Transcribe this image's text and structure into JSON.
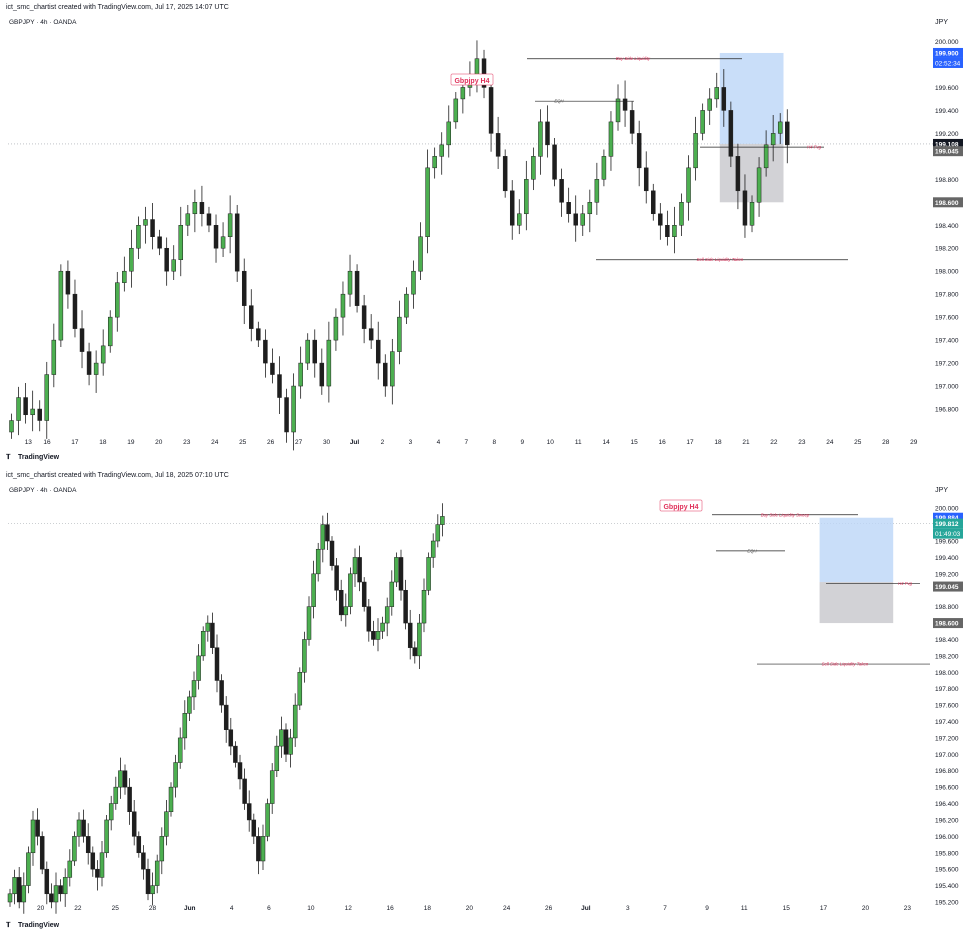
{
  "charts": [
    {
      "credit": "ict_smc_chartist created with TradingView.com, Jul 17, 2025 14:07 UTC",
      "symbol_line": "GBPJPY · 4h · OANDA",
      "currency": "JPY",
      "watermark": "TradingView",
      "title_tag": "Gbpjpy H4",
      "price_ticks": [
        "200.000",
        "199.800",
        "199.600",
        "199.400",
        "199.200",
        "198.800",
        "198.600",
        "198.400",
        "198.200",
        "198.000",
        "197.800",
        "197.600",
        "197.400",
        "197.200",
        "197.000",
        "196.800"
      ],
      "price_labels": [
        {
          "price": 199.9,
          "text": "199.900",
          "style": "blue"
        },
        {
          "price": 199.108,
          "text": "199.108",
          "style": "dark"
        },
        {
          "price": 199.045,
          "text": "199.045",
          "style": "grey"
        },
        {
          "price": 198.6,
          "text": "198.600",
          "style": "grey"
        }
      ],
      "countdown": "02:52:34",
      "date_ticks": [
        {
          "i": 2,
          "t": "13"
        },
        {
          "i": 6,
          "t": "16"
        },
        {
          "i": 12,
          "t": "17"
        },
        {
          "i": 18,
          "t": "18"
        },
        {
          "i": 24,
          "t": "19"
        },
        {
          "i": 30,
          "t": "20"
        },
        {
          "i": 36,
          "t": "23"
        },
        {
          "i": 42,
          "t": "24"
        },
        {
          "i": 48,
          "t": "25"
        },
        {
          "i": 54,
          "t": "26"
        },
        {
          "i": 60,
          "t": "27"
        },
        {
          "i": 66,
          "t": "30"
        },
        {
          "i": 72,
          "t": "Jul"
        },
        {
          "i": 78,
          "t": "2"
        },
        {
          "i": 84,
          "t": "3"
        },
        {
          "i": 90,
          "t": "4"
        },
        {
          "i": 96,
          "t": "7"
        },
        {
          "i": 102,
          "t": "8"
        },
        {
          "i": 108,
          "t": "9"
        },
        {
          "i": 114,
          "t": "10"
        },
        {
          "i": 120,
          "t": "11"
        },
        {
          "i": 126,
          "t": "14"
        },
        {
          "i": 132,
          "t": "15"
        },
        {
          "i": 138,
          "t": "16"
        },
        {
          "i": 144,
          "t": "17"
        },
        {
          "i": 150,
          "t": "18"
        },
        {
          "i": 156,
          "t": "21"
        },
        {
          "i": 162,
          "t": "22"
        },
        {
          "i": 168,
          "t": "23"
        },
        {
          "i": 174,
          "t": "24"
        },
        {
          "i": 180,
          "t": "25"
        },
        {
          "i": 186,
          "t": "28"
        },
        {
          "i": 192,
          "t": "29"
        }
      ],
      "annotations": {
        "bsl": "Buy Side Liquidity",
        "ssl": "Sell Side Liquidity Taken",
        "fvg": "H4 Fvg",
        "eqh": "EQH"
      }
    },
    {
      "credit": "ict_smc_chartist created with TradingView.com, Jul 18, 2025 07:10 UTC",
      "symbol_line": "GBPJPY · 4h · OANDA",
      "currency": "JPY",
      "watermark": "TradingView",
      "title_tag": "Gbpjpy H4",
      "price_ticks": [
        "200.000",
        "199.600",
        "199.400",
        "199.200",
        "198.800",
        "198.400",
        "198.200",
        "198.000",
        "197.800",
        "197.600",
        "197.400",
        "197.200",
        "197.000",
        "196.800",
        "196.600",
        "196.400",
        "196.200",
        "196.000",
        "195.800",
        "195.600",
        "195.400",
        "195.200"
      ],
      "price_labels": [
        {
          "price": 199.884,
          "text": "199.884",
          "style": "blue"
        },
        {
          "price": 199.812,
          "text": "199.812",
          "style": "green"
        },
        {
          "price": 199.045,
          "text": "199.045",
          "style": "grey"
        },
        {
          "price": 198.6,
          "text": "198.600",
          "style": "grey"
        }
      ],
      "countdown": "01:49:03",
      "date_ticks": [
        {
          "i": 4,
          "t": "20"
        },
        {
          "i": 12,
          "t": "22"
        },
        {
          "i": 20,
          "t": "25"
        },
        {
          "i": 28,
          "t": "28"
        },
        {
          "i": 36,
          "t": "Jun"
        },
        {
          "i": 45,
          "t": "4"
        },
        {
          "i": 53,
          "t": "6"
        },
        {
          "i": 62,
          "t": "10"
        },
        {
          "i": 70,
          "t": "12"
        },
        {
          "i": 79,
          "t": "16"
        },
        {
          "i": 87,
          "t": "18"
        },
        {
          "i": 96,
          "t": "20"
        },
        {
          "i": 104,
          "t": "24"
        },
        {
          "i": 113,
          "t": "26"
        },
        {
          "i": 121,
          "t": "Jul"
        },
        {
          "i": 130,
          "t": "3"
        },
        {
          "i": 138,
          "t": "7"
        },
        {
          "i": 147,
          "t": "9"
        },
        {
          "i": 155,
          "t": "11"
        },
        {
          "i": 164,
          "t": "15"
        },
        {
          "i": 172,
          "t": "17"
        },
        {
          "i": 181,
          "t": "20"
        },
        {
          "i": 190,
          "t": "23"
        }
      ],
      "annotations": {
        "bsl": "Buy Side Liquidity Sweep",
        "ssl": "Sell Side Liquidity Taken",
        "fvg": "H4 Fvg",
        "eqh": "EQH"
      }
    }
  ],
  "colors": {
    "up": "#4caf50",
    "down": "#1e1e1e",
    "accent": "#e0315b",
    "zone_blue": "#bbd6f7",
    "zone_grey": "#c7c7cc",
    "label_blue": "#2962ff",
    "label_green": "#26a69a"
  },
  "chart_data": [
    {
      "type": "line",
      "title": "Gbpjpy H4",
      "xlabel": "",
      "ylabel": "JPY",
      "ylim": [
        196.6,
        200.1
      ],
      "series": [
        {
          "values": [
            196.7,
            196.9,
            196.75,
            196.8,
            196.7,
            197.1,
            197.4,
            198.0,
            197.8,
            197.5,
            197.3,
            197.1,
            197.2,
            197.35,
            197.6,
            197.9,
            198.0,
            198.2,
            198.4,
            198.45,
            198.3,
            198.2,
            198.0,
            198.1,
            198.4,
            198.5,
            198.6,
            198.5,
            198.4,
            198.2,
            198.3,
            198.5,
            198.0,
            197.7,
            197.5,
            197.4,
            197.2,
            197.1,
            196.9,
            196.6,
            197.0,
            197.2,
            197.4,
            197.2,
            197.0,
            197.4,
            197.6,
            197.8,
            198.0,
            197.7,
            197.5,
            197.4,
            197.2,
            197.0,
            197.3,
            197.6,
            197.8,
            198.0,
            198.3,
            198.9,
            199.0,
            199.1,
            199.3,
            199.5,
            199.6,
            199.7,
            199.85,
            199.6,
            199.2,
            199.0,
            198.7,
            198.4,
            198.5,
            198.8,
            199.0,
            199.3,
            199.1,
            198.8,
            198.6,
            198.5,
            198.4,
            198.5,
            198.6,
            198.8,
            199.0,
            199.3,
            199.5,
            199.4,
            199.2,
            198.9,
            198.7,
            198.5,
            198.4,
            198.3,
            198.4,
            198.6,
            198.9,
            199.2,
            199.4,
            199.5,
            199.6,
            199.4,
            199.0,
            198.7,
            198.4,
            198.6,
            198.9,
            199.1,
            199.2,
            199.3,
            199.1
          ]
        }
      ],
      "levels": [
        {
          "label": "Buy Side Liquidity",
          "price": 199.85
        },
        {
          "label": "EQH",
          "price": 199.48
        },
        {
          "label": "H4 Fvg",
          "price": 199.08
        },
        {
          "label": "Sell Side Liquidity Taken",
          "price": 198.1
        }
      ],
      "zones": [
        {
          "kind": "target",
          "from": 199.108,
          "to": 199.9
        },
        {
          "kind": "stop",
          "from": 198.6,
          "to": 199.108
        }
      ]
    },
    {
      "type": "line",
      "title": "Gbpjpy H4",
      "xlabel": "",
      "ylabel": "JPY",
      "ylim": [
        195.2,
        200.1
      ],
      "series": [
        {
          "values": [
            195.3,
            195.5,
            195.2,
            195.4,
            195.8,
            196.2,
            196.0,
            195.6,
            195.3,
            195.2,
            195.4,
            195.3,
            195.5,
            195.7,
            196.0,
            196.2,
            196.0,
            195.8,
            195.6,
            195.5,
            195.8,
            196.2,
            196.4,
            196.6,
            196.8,
            196.6,
            196.3,
            196.0,
            195.8,
            195.6,
            195.3,
            195.4,
            195.7,
            196.0,
            196.3,
            196.6,
            196.9,
            197.2,
            197.5,
            197.7,
            197.9,
            198.2,
            198.5,
            198.6,
            198.3,
            197.9,
            197.6,
            197.3,
            197.1,
            196.9,
            196.7,
            196.4,
            196.2,
            196.0,
            195.7,
            196.0,
            196.4,
            196.8,
            197.1,
            197.3,
            197.0,
            197.2,
            197.6,
            198.0,
            198.4,
            198.8,
            199.2,
            199.5,
            199.8,
            199.6,
            199.3,
            199.0,
            198.7,
            198.8,
            199.2,
            199.4,
            199.1,
            198.8,
            198.5,
            198.4,
            198.5,
            198.6,
            198.8,
            199.1,
            199.4,
            199.0,
            198.6,
            198.3,
            198.2,
            198.6,
            199.0,
            199.4,
            199.6,
            199.8,
            199.9
          ]
        }
      ],
      "levels": [
        {
          "label": "Buy Side Liquidity Sweep",
          "price": 199.92
        },
        {
          "label": "EQH",
          "price": 199.48
        },
        {
          "label": "H4 Fvg",
          "price": 199.08
        },
        {
          "label": "Sell Side Liquidity Taken",
          "price": 198.1
        }
      ],
      "zones": [
        {
          "kind": "target",
          "from": 199.1,
          "to": 199.884
        },
        {
          "kind": "stop",
          "from": 198.6,
          "to": 199.1
        }
      ]
    }
  ]
}
